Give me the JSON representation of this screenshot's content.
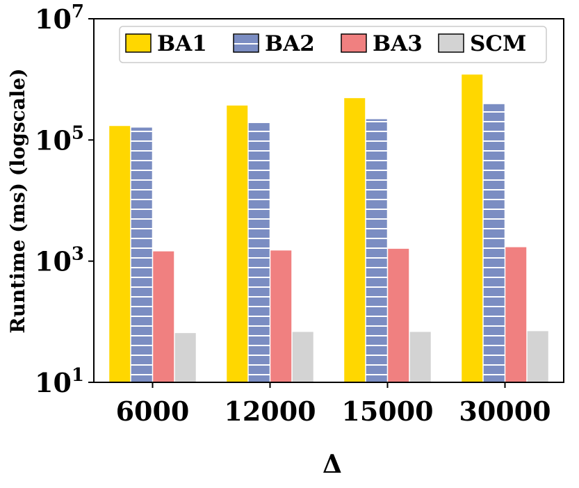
{
  "chart_data": {
    "type": "bar",
    "title": "",
    "xlabel": "Δ",
    "ylabel": "Runtime (ms) (logscale)",
    "yscale": "log",
    "ylim": [
      10,
      10000000
    ],
    "yticks": [
      {
        "value": 10,
        "base": "10",
        "exp": "1"
      },
      {
        "value": 1000,
        "base": "10",
        "exp": "3"
      },
      {
        "value": 100000,
        "base": "10",
        "exp": "5"
      },
      {
        "value": 10000000,
        "base": "10",
        "exp": "7"
      }
    ],
    "categories": [
      "6000",
      "12000",
      "15000",
      "30000"
    ],
    "series": [
      {
        "name": "BA1",
        "color": "#FFD700",
        "hatch": "none",
        "values": [
          170000,
          370000,
          490000,
          1200000
        ]
      },
      {
        "name": "BA2",
        "color": "#7B8DC2",
        "hatch": "horizontal",
        "values": [
          160000,
          190000,
          220000,
          390000
        ]
      },
      {
        "name": "BA3",
        "color": "#F08080",
        "hatch": "none",
        "values": [
          1450,
          1500,
          1600,
          1700
        ]
      },
      {
        "name": "SCM",
        "color": "#D3D3D3",
        "hatch": "none",
        "values": [
          65,
          68,
          68,
          70
        ]
      }
    ],
    "grid": false,
    "legend_position": "top"
  }
}
